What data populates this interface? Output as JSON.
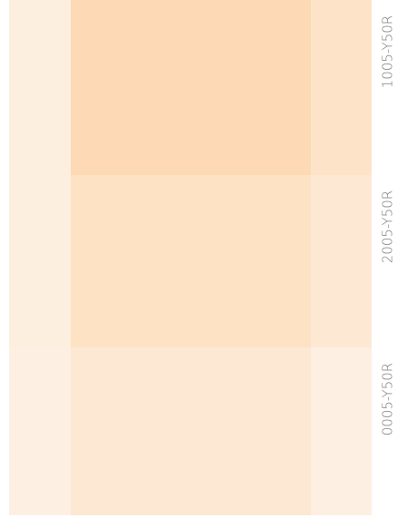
{
  "swatches": [
    {
      "label": "1005-Y50R",
      "colors": [
        "#fdefe0",
        "#fddab5",
        "#fde4c8"
      ]
    },
    {
      "label": "2005-Y50R",
      "colors": [
        "#fdefe0",
        "#fde2c4",
        "#fde8d3"
      ]
    },
    {
      "label": "0005-Y50R",
      "colors": [
        "#fdf0e3",
        "#fde8d3",
        "#fdefe2"
      ]
    }
  ]
}
